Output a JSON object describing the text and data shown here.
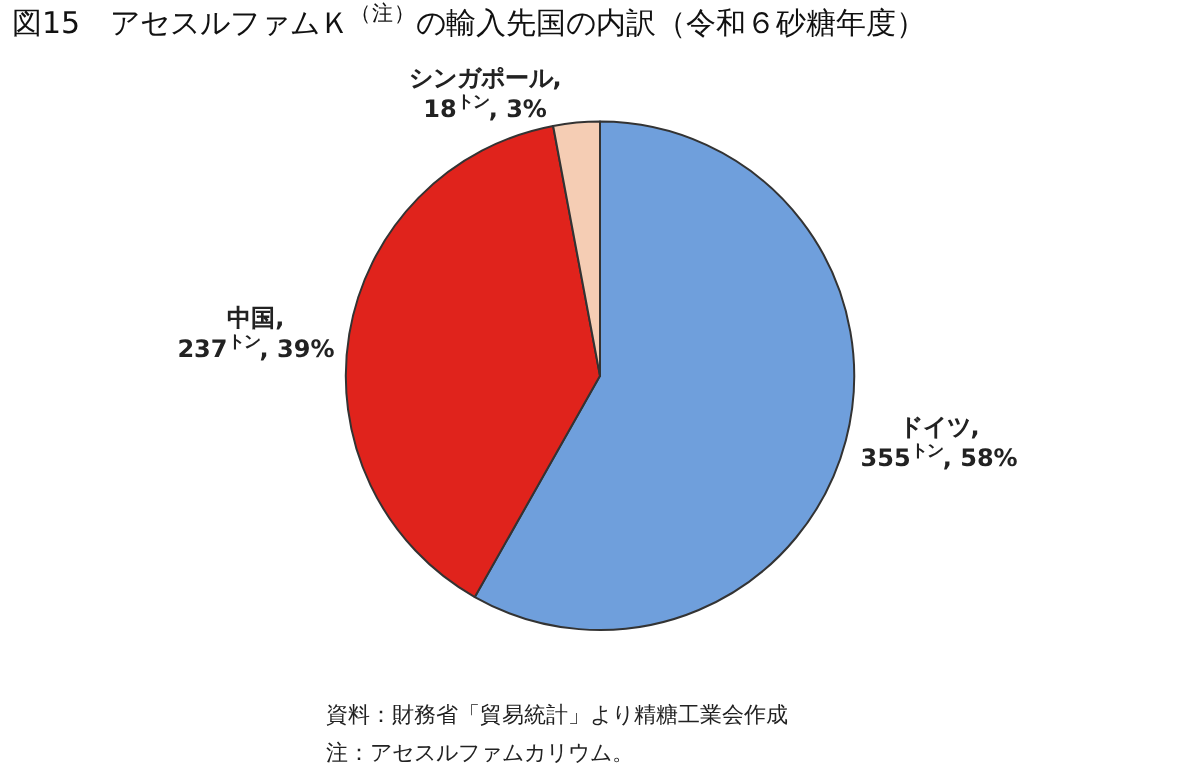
{
  "chart_data": {
    "type": "pie",
    "title": "図15　アセスルファムＫ$^{（注）}$の輸入先国の内訳（令和６砂糖年度）",
    "categories": [
      "ドイツ",
      "中国",
      "シンガポール"
    ],
    "values": [
      355,
      237,
      18
    ],
    "value_labels": [
      ",\n355$^{トン}$, 58%",
      ",\n237$^{トン}$, 39%",
      ",\n18$^{トン}$, 3%"
    ],
    "colors": [
      "#6f9fdc",
      "#e0231c",
      "#f5cdb4"
    ],
    "annotations": [
      "資料：財務省「貿易統計」より精糖工業会作成",
      "注：アセスルファムカリウム。"
    ],
    "legend": false
  }
}
